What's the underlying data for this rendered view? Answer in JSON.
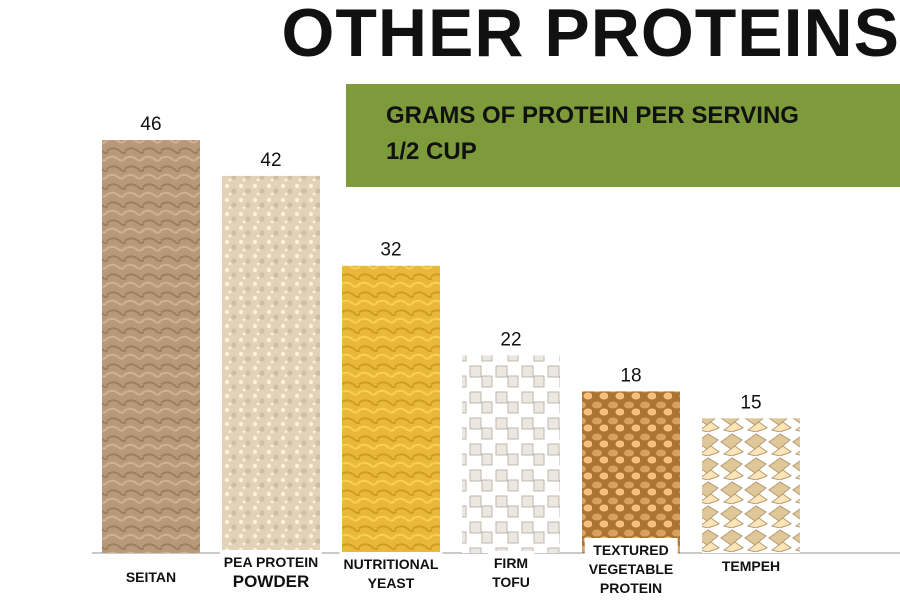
{
  "title": "OTHER PROTEINS",
  "subtitle": [
    "GRAMS OF PROTEIN PER SERVING",
    "1/2 CUP"
  ],
  "colors": {
    "banner": "#7d9b3a",
    "seitan": "#b89a7a",
    "pea_protein_powder": "#e2d3b8",
    "nutritional_yeast": "#e9b83a",
    "firm_tofu": "#ece8e1",
    "textured_vegetable_protein": "#d9a15e",
    "tempeh": "#e0c79a"
  },
  "chart_data": {
    "type": "bar",
    "title": "OTHER PROTEINS",
    "subtitle": "GRAMS OF PROTEIN PER SERVING 1/2 CUP",
    "categories": [
      "SEITAN",
      "PEA PROTEIN POWDER",
      "NUTRITIONAL YEAST",
      "FIRM TOFU",
      "TEXTURED VEGETABLE PROTEIN",
      "TEMPEH"
    ],
    "category_lines": [
      [
        "SEITAN"
      ],
      [
        "PEA PROTEIN",
        "POWDER"
      ],
      [
        "NUTRITIONAL",
        "YEAST"
      ],
      [
        "FIRM",
        "TOFU"
      ],
      [
        "TEXTURED",
        "VEGETABLE",
        "PROTEIN"
      ],
      [
        "TEMPEH"
      ]
    ],
    "values": [
      46,
      42,
      32,
      22,
      18,
      15
    ],
    "data_labels": [
      "46",
      "42",
      "32",
      "22",
      "18",
      "15"
    ],
    "xlabel": "",
    "ylabel": "",
    "ylim": [
      0,
      46
    ],
    "grid": false,
    "legend": "none"
  }
}
